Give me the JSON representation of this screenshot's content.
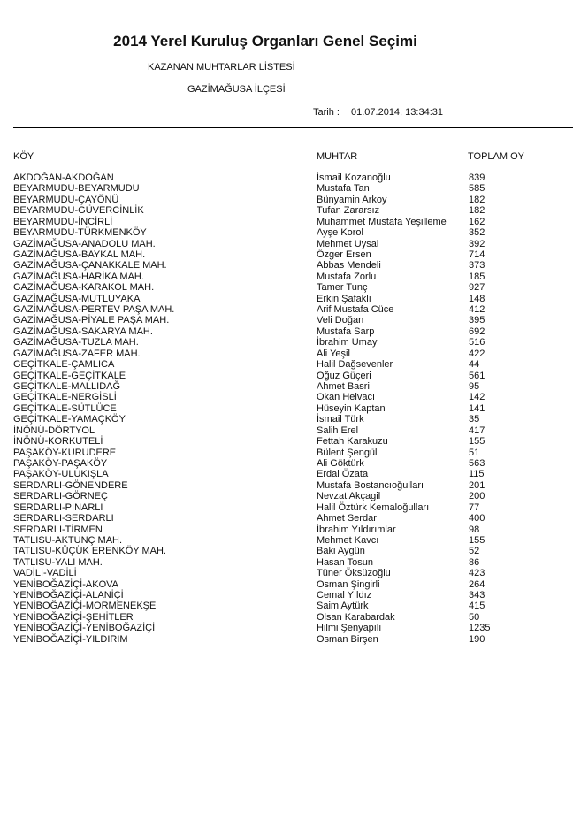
{
  "header": {
    "title": "2014 Yerel Kuruluş Organları Genel Seçimi",
    "subtitle": "KAZANAN MUHTARLAR LİSTESİ",
    "district": "GAZİMAĞUSA İLÇESİ",
    "date_label": "Tarih :",
    "date_value": "01.07.2014, 13:34:31"
  },
  "table": {
    "columns": [
      "KÖY",
      "MUHTAR",
      "TOPLAM OY"
    ],
    "rows": [
      [
        "AKDOĞAN-AKDOĞAN",
        "İsmail Kozanoğlu",
        "839"
      ],
      [
        "BEYARMUDU-BEYARMUDU",
        "Mustafa Tan",
        "585"
      ],
      [
        "BEYARMUDU-ÇAYÖNÜ",
        "Bünyamin Arkoy",
        "182"
      ],
      [
        "BEYARMUDU-GÜVERCİNLİK",
        "Tufan Zararsız",
        "182"
      ],
      [
        "BEYARMUDU-İNCİRLİ",
        "Muhammet Mustafa Yeşilleme",
        "162"
      ],
      [
        "BEYARMUDU-TÜRKMENKÖY",
        "Ayşe Korol",
        "352"
      ],
      [
        "GAZİMAĞUSA-ANADOLU MAH.",
        "Mehmet Uysal",
        "392"
      ],
      [
        "GAZİMAĞUSA-BAYKAL MAH.",
        "Özger Ersen",
        "714"
      ],
      [
        "GAZİMAĞUSA-ÇANAKKALE MAH.",
        "Abbas Mendeli",
        "373"
      ],
      [
        "GAZİMAĞUSA-HARİKA MAH.",
        "Mustafa Zorlu",
        "185"
      ],
      [
        "GAZİMAĞUSA-KARAKOL MAH.",
        "Tamer Tunç",
        "927"
      ],
      [
        "GAZİMAĞUSA-MUTLUYAKA",
        "Erkin Şafaklı",
        "148"
      ],
      [
        "GAZİMAĞUSA-PERTEV PAŞA MAH.",
        "Arif Mustafa Cüce",
        "412"
      ],
      [
        "GAZİMAĞUSA-PİYALE PAŞA MAH.",
        "Veli Doğan",
        "395"
      ],
      [
        "GAZİMAĞUSA-SAKARYA MAH.",
        "Mustafa Sarp",
        "692"
      ],
      [
        "GAZİMAĞUSA-TUZLA MAH.",
        "İbrahim Umay",
        "516"
      ],
      [
        "GAZİMAĞUSA-ZAFER MAH.",
        "Ali Yeşil",
        "422"
      ],
      [
        "GEÇİTKALE-ÇAMLICA",
        "Halil Dağsevenler",
        "44"
      ],
      [
        "GEÇİTKALE-GEÇİTKALE",
        "Oğuz Güçeri",
        "561"
      ],
      [
        "GEÇİTKALE-MALLIDAĞ",
        "Ahmet Basri",
        "95"
      ],
      [
        "GEÇİTKALE-NERGİSLİ",
        "Okan Helvacı",
        "142"
      ],
      [
        "GEÇİTKALE-SÜTLÜCE",
        "Hüseyin Kaptan",
        "141"
      ],
      [
        "GEÇİTKALE-YAMAÇKÖY",
        "İsmail Türk",
        "35"
      ],
      [
        "İNÖNÜ-DÖRTYOL",
        "Salih Erel",
        "417"
      ],
      [
        "İNÖNÜ-KORKUTELİ",
        "Fettah Karakuzu",
        "155"
      ],
      [
        "PAŞAKÖY-KURUDERE",
        "Bülent Şengül",
        "51"
      ],
      [
        "PAŞAKÖY-PAŞAKÖY",
        "Ali Göktürk",
        "563"
      ],
      [
        "PAŞAKÖY-ULUKIŞLA",
        "Erdal Özata",
        "115"
      ],
      [
        "SERDARLI-GÖNENDERE",
        "Mustafa Bostancıoğulları",
        "201"
      ],
      [
        "SERDARLI-GÖRNEÇ",
        "Nevzat Akçagil",
        "200"
      ],
      [
        "SERDARLI-PINARLI",
        "Halil Öztürk Kemaloğulları",
        "77"
      ],
      [
        "SERDARLI-SERDARLI",
        "Ahmet Serdar",
        "400"
      ],
      [
        "SERDARLI-TİRMEN",
        "İbrahim Yıldırımlar",
        "98"
      ],
      [
        "TATLISU-AKTUNÇ MAH.",
        "Mehmet Kavcı",
        "155"
      ],
      [
        "TATLISU-KÜÇÜK ERENKÖY MAH.",
        "Baki Aygün",
        "52"
      ],
      [
        "TATLISU-YALI MAH.",
        "Hasan Tosun",
        "86"
      ],
      [
        "VADİLİ-VADİLİ",
        "Tüner Öksüzoğlu",
        "423"
      ],
      [
        "YENİBOĞAZİÇİ-AKOVA",
        "Osman Şingirli",
        "264"
      ],
      [
        "YENİBOĞAZİÇİ-ALANİÇİ",
        "Cemal Yıldız",
        "343"
      ],
      [
        "YENİBOĞAZİÇİ-MORMENEKŞE",
        "Saim Aytürk",
        "415"
      ],
      [
        "YENİBOĞAZİÇİ-ŞEHİTLER",
        "Olsan Karabardak",
        "50"
      ],
      [
        "YENİBOĞAZİÇİ-YENİBOĞAZİÇİ",
        "Hilmi Şenyapılı",
        "1235"
      ],
      [
        "YENİBOĞAZİÇİ-YILDIRIM",
        "Osman Birşen",
        "190"
      ]
    ]
  }
}
